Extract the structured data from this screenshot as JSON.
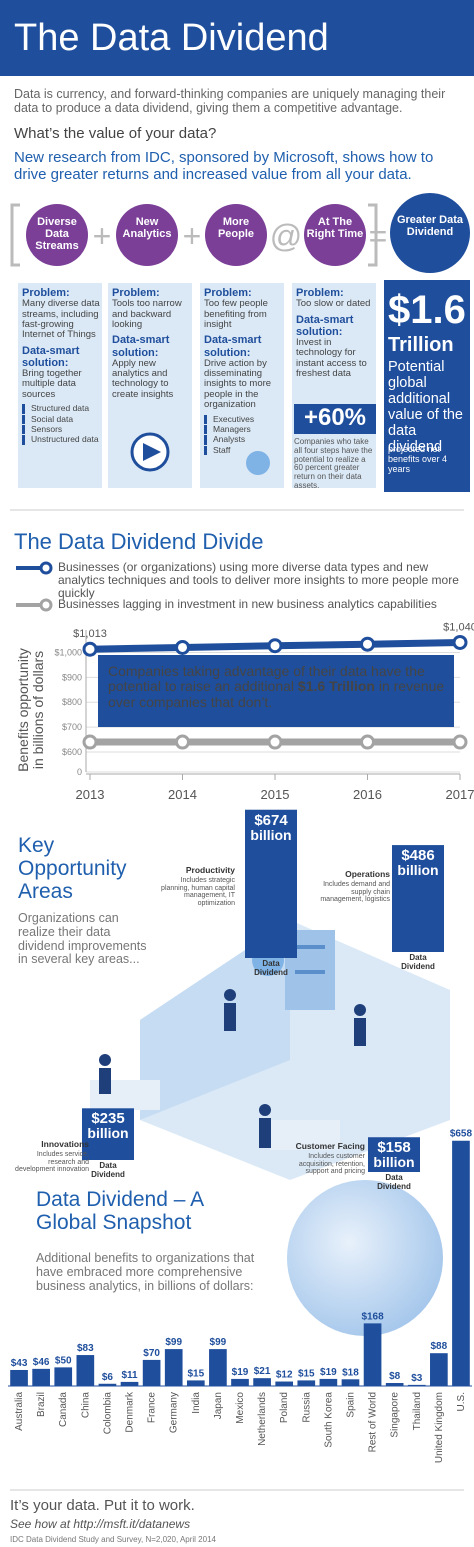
{
  "header": {
    "title": "The Data Dividend"
  },
  "intro": "Data is currency, and forward-thinking companies are uniquely managing their data to produce a data dividend, giving them a competitive advantage.",
  "question": "What’s the value of your data?",
  "research": "New research from IDC, sponsored by Microsoft, shows how to drive greater returns and increased value from all your data.",
  "formula": {
    "steps": [
      "Diverse Data Streams",
      "New Analytics",
      "More People",
      "At The Right Time"
    ],
    "operators": [
      "+",
      "+",
      "@",
      "="
    ],
    "result": "Greater Data Dividend"
  },
  "labels": {
    "problem": "Problem:",
    "solution": "Data-smart solution:"
  },
  "columns": [
    {
      "problem": "Many diverse data streams, including fast-growing Internet of Things",
      "solution": "Bring together multiple data sources",
      "items": [
        "Structured data",
        "Social data",
        "Sensors",
        "Unstructured data"
      ]
    },
    {
      "problem": "Tools too narrow and backward looking",
      "solution": "Apply new analytics and technology to create insights",
      "items": []
    },
    {
      "problem": "Too few people benefiting from insight",
      "solution": "Drive action by disseminating insights to more people in the organization",
      "items": [
        "Executives",
        "Managers",
        "Analysts",
        "Staff"
      ]
    },
    {
      "problem": "Too slow or dated",
      "solution": "Invest in technology for instant access to freshest data",
      "items": []
    }
  ],
  "stat": {
    "value": "+60%",
    "text": "Companies who take all four steps have the potential to realize a 60 percent greater return on their data assets."
  },
  "total": {
    "amount": "$1.6",
    "unit": "Trillion",
    "text": "Potential global additional value of the data dividend",
    "note": "projected net benefits over 4 years"
  },
  "divide": {
    "title": "The Data Dividend Divide",
    "legend": [
      "Businesses (or organizations) using more diverse data types and new analytics techniques and tools to deliver more insights to more people more quickly",
      "Businesses lagging in investment in new business analytics capabilities"
    ]
  },
  "line_chart": {
    "type": "line",
    "y_label": [
      "Benefits opportunity",
      "in billions of dollars"
    ],
    "x": [
      2013,
      2014,
      2015,
      2016,
      2017
    ],
    "ylim": [
      0,
      1050
    ],
    "yticks": [
      0,
      {
        "value": 600,
        "label": "$600"
      },
      {
        "value": 700,
        "label": "$700"
      },
      {
        "value": 800,
        "label": "$800"
      },
      {
        "value": 900,
        "label": "$900"
      },
      {
        "value": 1000,
        "label": "$1,000"
      }
    ],
    "series": [
      {
        "name": "Businesses (or organizations) using more diverse data types and new analytics techniques and tools to deliver more insights to more people more quickly",
        "color": "#1f4e9c",
        "values": [
          1013,
          1020,
          1027,
          1033,
          1040
        ],
        "value_labels": [
          "$1,013",
          null,
          null,
          null,
          "$1,040"
        ]
      },
      {
        "name": "Businesses lagging in investment in new business analytics capabilities",
        "color": "#a3a3a3",
        "values": [
          640,
          640,
          640,
          640,
          640
        ]
      }
    ],
    "annotation": [
      "Companies taking advantage of their data have the potential to raise an additional ",
      "$1.6 Trillion",
      " in revenue over companies that don’t."
    ]
  },
  "opportunity": {
    "title": "Key Opportunity Areas",
    "text": "Organizations can realize their data dividend improvements in several key areas...",
    "areas": [
      {
        "name": "Productivity",
        "detail": "Includes strategic planning, human capital management, IT optimization",
        "value": 674,
        "value_label": "$674",
        "unit": "billion",
        "caption": "Data Dividend"
      },
      {
        "name": "Operations",
        "detail": "Includes demand and supply chain management, logistics",
        "value": 486,
        "value_label": "$486",
        "unit": "billion",
        "caption": "Data Dividend"
      },
      {
        "name": "Innovations",
        "detail": "Includes service, research and development innovation",
        "value": 235,
        "value_label": "$235",
        "unit": "billion",
        "caption": "Data Dividend"
      },
      {
        "name": "Customer Facing",
        "detail": "Includes customer acquisition, retention, support and pricing",
        "value": 158,
        "value_label": "$158",
        "unit": "billion",
        "caption": "Data Dividend"
      }
    ]
  },
  "bar_chart": {
    "type": "bar",
    "title": "Data Dividend – A Global Snapshot",
    "subtitle": "Additional benefits to organizations that have embraced more comprehensive business analytics, in billions of dollars:",
    "categories": [
      "Australia",
      "Brazil",
      "Canada",
      "China",
      "Colombia",
      "Denmark",
      "France",
      "Germany",
      "India",
      "Japan",
      "Mexico",
      "Netherlands",
      "Poland",
      "Russia",
      "South Korea",
      "Spain",
      "Rest of World",
      "Singapore",
      "Thailand",
      "United Kingdom",
      "U.S."
    ],
    "values": [
      43,
      46,
      50,
      83,
      6,
      11,
      70,
      99,
      15,
      99,
      19,
      21,
      12,
      15,
      19,
      18,
      168,
      8,
      3,
      88,
      658
    ],
    "value_labels": [
      "$43",
      "$46",
      "$50",
      "$83",
      "$6",
      "$11",
      "$70",
      "$99",
      "$15",
      "$99",
      "$19",
      "$21",
      "$12",
      "$15",
      "$19",
      "$18",
      "$168",
      "$8",
      "$3",
      "$88",
      "$658"
    ],
    "color": "#1f4e9c",
    "ylim": [
      0,
      660
    ]
  },
  "footer": {
    "tagline": "It’s your data.  Put it to work.",
    "link": "See how at http://msft.it/datanews",
    "source": "IDC Data Dividend Study and Survey, N=2,020, April 2014"
  }
}
